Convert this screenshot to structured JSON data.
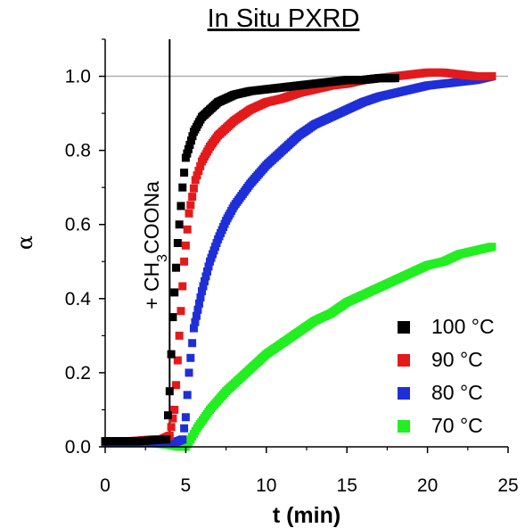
{
  "chart_data": {
    "type": "scatter",
    "title": "In Situ PXRD",
    "xlabel": "t (min)",
    "ylabel": "α",
    "xlim": [
      0,
      25
    ],
    "ylim": [
      0,
      1.1
    ],
    "x_ticks": [
      "0",
      "5",
      "10",
      "15",
      "20",
      "25"
    ],
    "y_ticks": [
      "0.0",
      "0.2",
      "0.4",
      "0.6",
      "0.8",
      "1.0"
    ],
    "reference_line_y": 1.0,
    "addition_time_min": 4.0,
    "annotation": {
      "prefix": "+ CH",
      "sub": "3",
      "suffix": "COONa"
    },
    "legend_position": "bottom-right",
    "series": [
      {
        "name": "100 °C",
        "color": "#000000",
        "points": [
          [
            0,
            0.015
          ],
          [
            1,
            0.015
          ],
          [
            2,
            0.015
          ],
          [
            3,
            0.018
          ],
          [
            3.8,
            0.02
          ],
          [
            4.0,
            0.15
          ],
          [
            4.2,
            0.35
          ],
          [
            4.5,
            0.55
          ],
          [
            4.8,
            0.7
          ],
          [
            5.0,
            0.78
          ],
          [
            5.5,
            0.85
          ],
          [
            6,
            0.89
          ],
          [
            6.5,
            0.91
          ],
          [
            7,
            0.93
          ],
          [
            7.5,
            0.94
          ],
          [
            8,
            0.95
          ],
          [
            9,
            0.96
          ],
          [
            10,
            0.965
          ],
          [
            11,
            0.97
          ],
          [
            12,
            0.975
          ],
          [
            13,
            0.98
          ],
          [
            14,
            0.985
          ],
          [
            15,
            0.99
          ],
          [
            16,
            0.99
          ],
          [
            17,
            0.995
          ],
          [
            18,
            0.995
          ]
        ]
      },
      {
        "name": "90 °C",
        "color": "#e31a1c",
        "points": [
          [
            0,
            0.015
          ],
          [
            1.5,
            0.015
          ],
          [
            3,
            0.02
          ],
          [
            3.5,
            0.02
          ],
          [
            4.0,
            0.03
          ],
          [
            4.3,
            0.1
          ],
          [
            4.6,
            0.3
          ],
          [
            4.9,
            0.5
          ],
          [
            5.2,
            0.63
          ],
          [
            5.6,
            0.72
          ],
          [
            6,
            0.77
          ],
          [
            6.5,
            0.81
          ],
          [
            7,
            0.84
          ],
          [
            8,
            0.88
          ],
          [
            9,
            0.91
          ],
          [
            10,
            0.93
          ],
          [
            11,
            0.94
          ],
          [
            12,
            0.955
          ],
          [
            13,
            0.965
          ],
          [
            14,
            0.975
          ],
          [
            15,
            0.98
          ],
          [
            16,
            0.99
          ],
          [
            17,
            0.995
          ],
          [
            18,
            1.0
          ],
          [
            19,
            1.005
          ],
          [
            20,
            1.01
          ],
          [
            21,
            1.01
          ],
          [
            22,
            1.005
          ],
          [
            23,
            1.0
          ],
          [
            24,
            1.0
          ]
        ]
      },
      {
        "name": "80 °C",
        "color": "#1f2fd8",
        "points": [
          [
            0,
            0.01
          ],
          [
            2,
            0.01
          ],
          [
            3.5,
            0.01
          ],
          [
            4.2,
            0.01
          ],
          [
            4.8,
            0.02
          ],
          [
            5.0,
            0.08
          ],
          [
            5.2,
            0.2
          ],
          [
            5.5,
            0.32
          ],
          [
            6,
            0.42
          ],
          [
            6.5,
            0.5
          ],
          [
            7,
            0.56
          ],
          [
            7.5,
            0.61
          ],
          [
            8,
            0.65
          ],
          [
            9,
            0.71
          ],
          [
            10,
            0.76
          ],
          [
            11,
            0.8
          ],
          [
            12,
            0.84
          ],
          [
            13,
            0.87
          ],
          [
            14,
            0.89
          ],
          [
            15,
            0.91
          ],
          [
            16,
            0.93
          ],
          [
            17,
            0.945
          ],
          [
            18,
            0.955
          ],
          [
            19,
            0.965
          ],
          [
            20,
            0.975
          ],
          [
            21,
            0.98
          ],
          [
            22,
            0.985
          ],
          [
            23,
            0.99
          ],
          [
            24,
            1.0
          ]
        ]
      },
      {
        "name": "70 °C",
        "color": "#22ee22",
        "points": [
          [
            0,
            0.015
          ],
          [
            1,
            0.015
          ],
          [
            2,
            0.01
          ],
          [
            3,
            0.01
          ],
          [
            4,
            0.005
          ],
          [
            4.6,
            0.0
          ],
          [
            5.0,
            0.0
          ],
          [
            5.3,
            0.02
          ],
          [
            5.7,
            0.05
          ],
          [
            6.5,
            0.1
          ],
          [
            7.5,
            0.15
          ],
          [
            8.5,
            0.19
          ],
          [
            10,
            0.25
          ],
          [
            11,
            0.28
          ],
          [
            12,
            0.31
          ],
          [
            13,
            0.34
          ],
          [
            14,
            0.36
          ],
          [
            15,
            0.39
          ],
          [
            16,
            0.41
          ],
          [
            17,
            0.43
          ],
          [
            18,
            0.45
          ],
          [
            19,
            0.47
          ],
          [
            20,
            0.49
          ],
          [
            21,
            0.5
          ],
          [
            22,
            0.52
          ],
          [
            23,
            0.53
          ],
          [
            24,
            0.54
          ]
        ]
      }
    ]
  }
}
